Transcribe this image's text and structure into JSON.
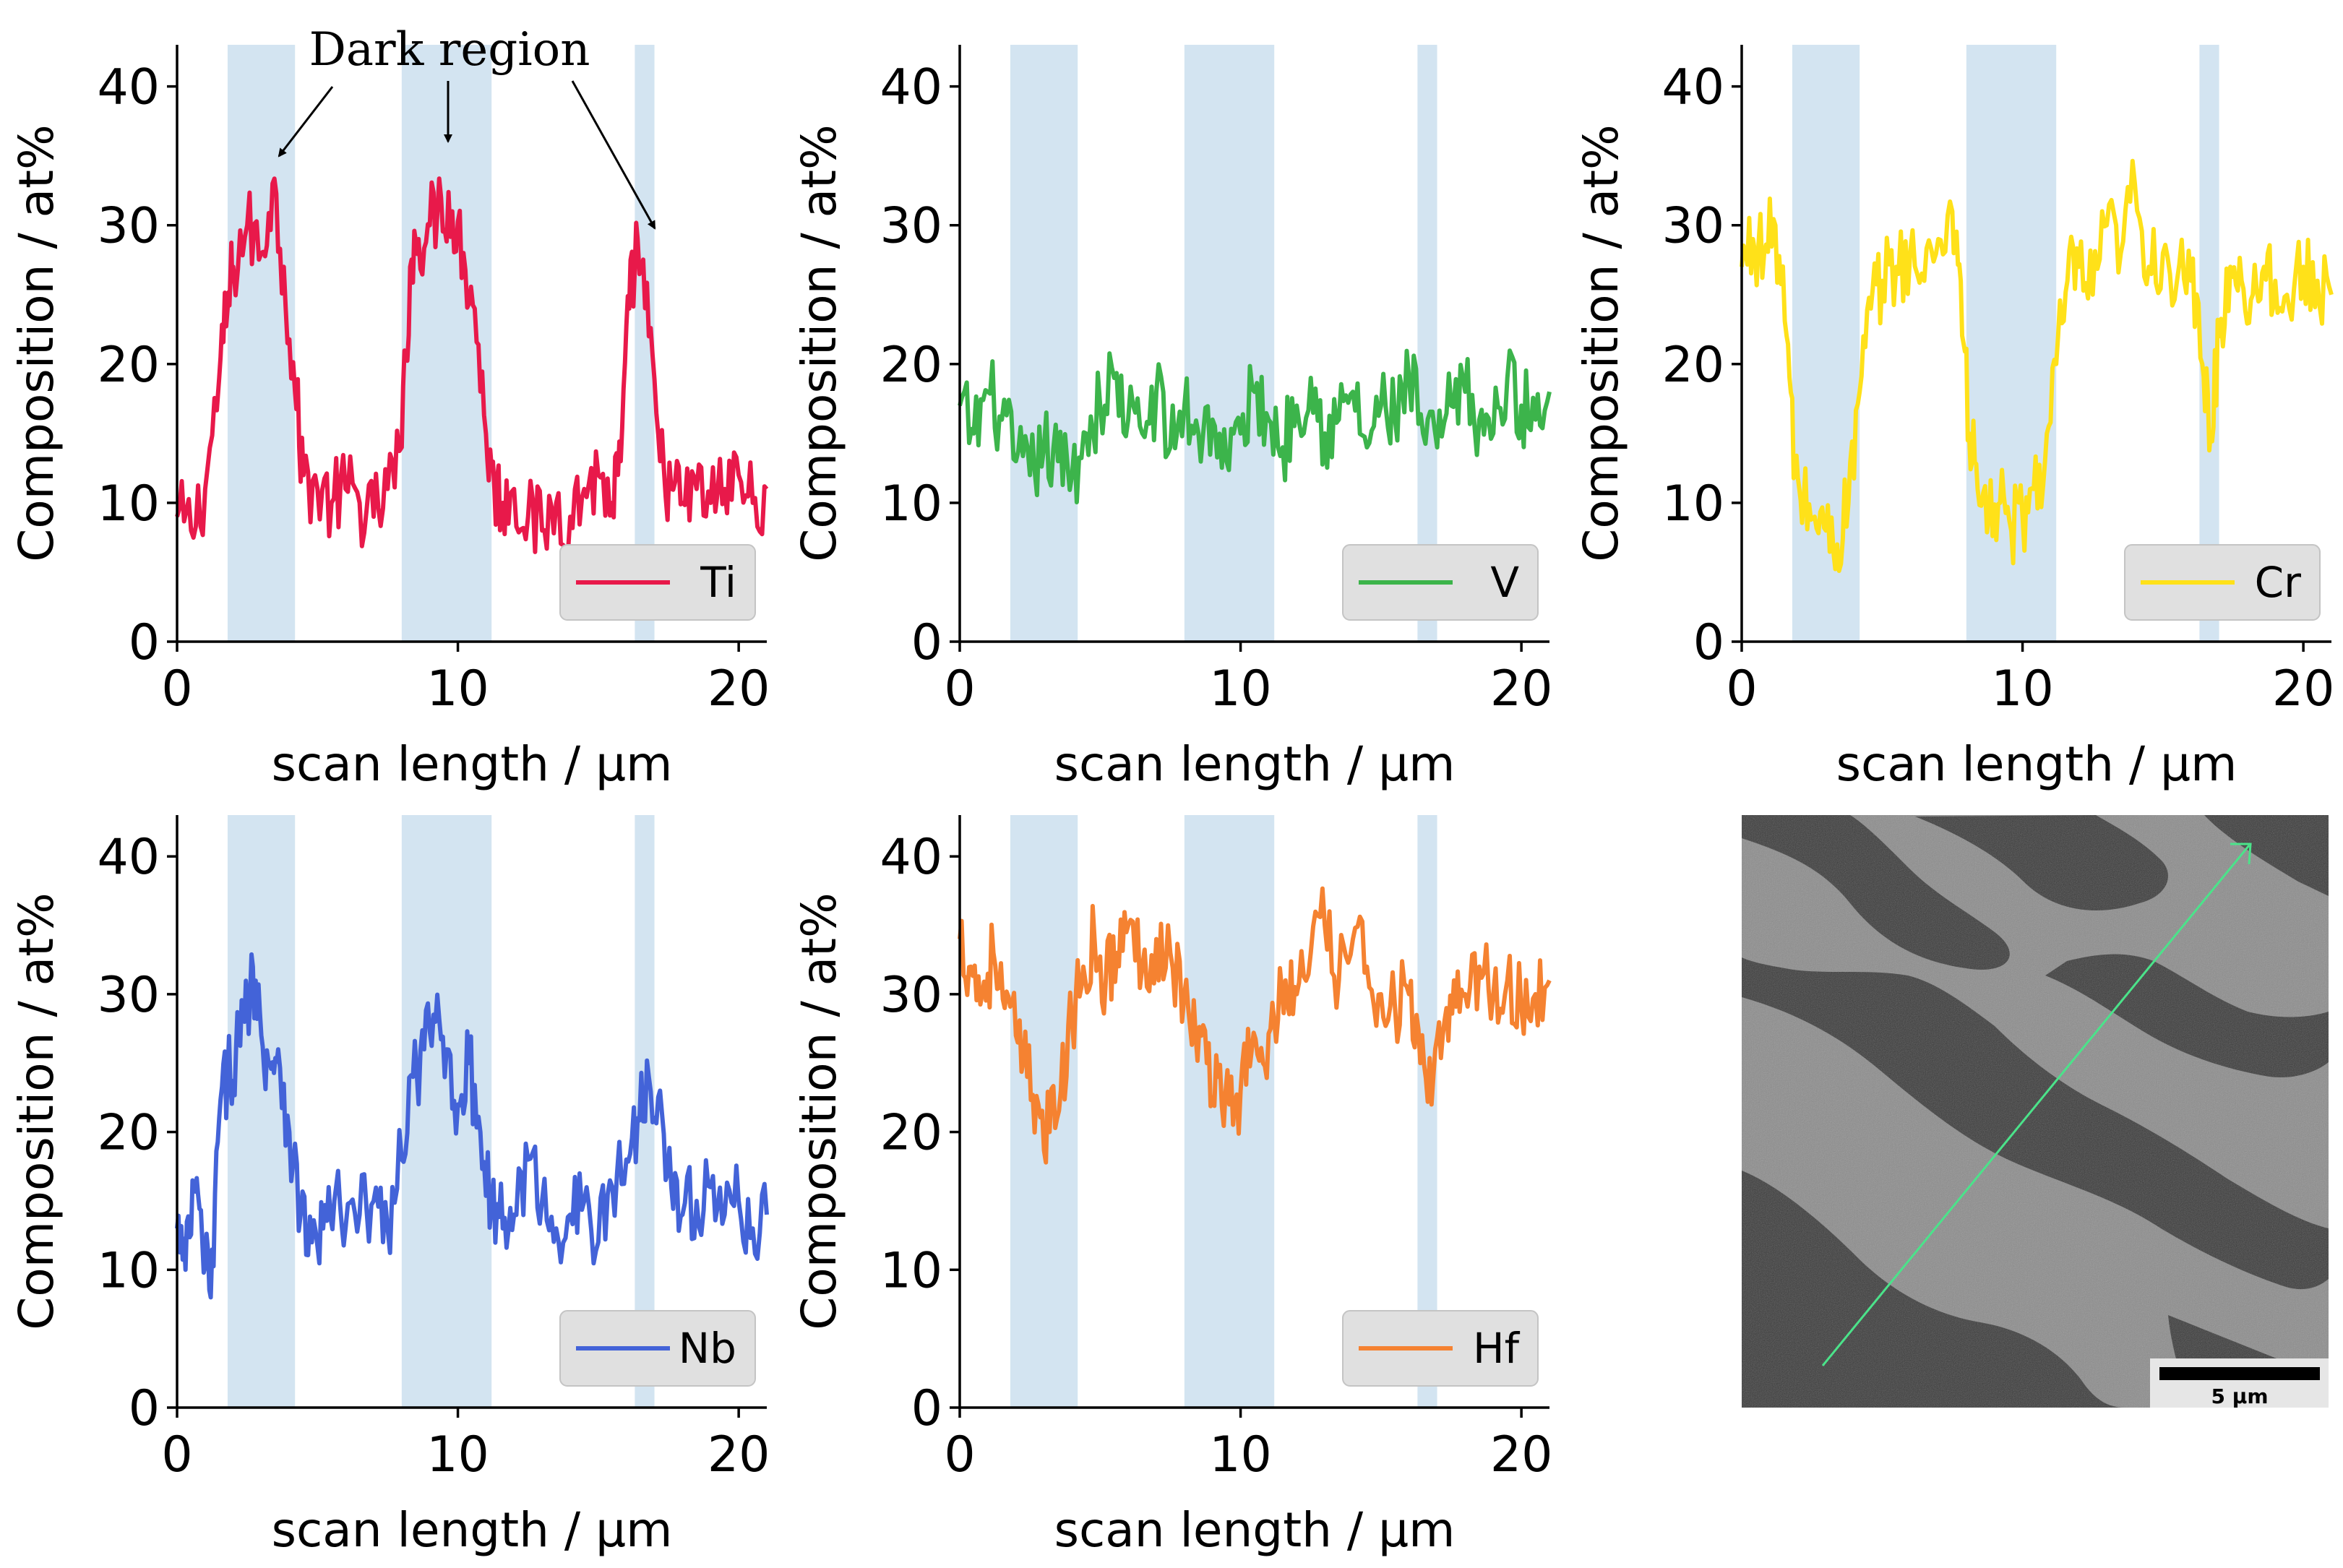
{
  "chart_data": [
    {
      "type": "line",
      "panel": "top-left",
      "series": [
        {
          "name": "Ti",
          "color": "#e8194a",
          "x": [
            0,
            0.5,
            1,
            1.5,
            1.8,
            2,
            2.5,
            3,
            3.4,
            3.8,
            4.2,
            4.5,
            5,
            5.5,
            6,
            6.5,
            7,
            7.5,
            8,
            8.3,
            8.6,
            9,
            9.4,
            9.8,
            10.2,
            10.6,
            11,
            11.3,
            11.6,
            12,
            12.5,
            13,
            13.5,
            14,
            14.5,
            15,
            15.5,
            15.8,
            16.1,
            16.4,
            16.8,
            17.2,
            17.6,
            18,
            18.5,
            19,
            19.5,
            20,
            20.5,
            21
          ],
          "values": [
            9,
            8,
            11,
            19,
            24,
            27,
            30,
            28,
            33,
            27,
            18,
            12,
            11,
            10,
            11,
            10,
            9,
            11,
            14,
            27,
            29,
            30,
            32,
            31,
            28,
            24,
            15,
            11,
            10,
            11,
            9,
            8,
            10,
            9,
            11,
            12,
            10,
            13,
            24,
            29,
            22,
            13,
            11,
            10,
            11,
            10,
            11,
            12,
            10,
            11
          ]
        }
      ],
      "legend": {
        "position": "lower-right",
        "entries": [
          "Ti"
        ]
      },
      "xlabel": "scan length / μm",
      "ylabel": "Composition / at%",
      "xlim": [
        0,
        21
      ],
      "ylim": [
        0,
        43
      ],
      "xticks": [
        "0",
        "10",
        "20"
      ],
      "yticks": [
        "0",
        "10",
        "20",
        "30",
        "40"
      ],
      "shaded_regions": [
        [
          1.8,
          4.2
        ],
        [
          8.0,
          11.2
        ],
        [
          16.3,
          17.0
        ]
      ],
      "annotation": {
        "text": "Dark region"
      }
    },
    {
      "type": "line",
      "panel": "top-middle",
      "series": [
        {
          "name": "V",
          "color": "#3cb44b",
          "x": [
            0,
            0.5,
            1,
            1.5,
            2,
            2.5,
            3,
            3.5,
            4,
            4.5,
            5,
            5.5,
            6,
            6.5,
            7,
            7.5,
            8,
            8.5,
            9,
            9.5,
            10,
            10.5,
            11,
            11.5,
            12,
            12.5,
            13,
            13.5,
            14,
            14.5,
            15,
            15.5,
            16,
            16.5,
            17,
            17.5,
            18,
            18.5,
            19,
            19.5,
            20,
            20.5,
            21
          ],
          "values": [
            17,
            15,
            18,
            16,
            13,
            12,
            14,
            13,
            12,
            15,
            17,
            19,
            16,
            15,
            18,
            14,
            17,
            15,
            16,
            13,
            15,
            18,
            16,
            14,
            17,
            19,
            15,
            16,
            18,
            14,
            17,
            16,
            19,
            15,
            14,
            17,
            18,
            16,
            15,
            19,
            17,
            16,
            18
          ]
        }
      ],
      "legend": {
        "position": "lower-right",
        "entries": [
          "V"
        ]
      },
      "xlabel": "scan length / μm",
      "ylabel": "Composition / at%",
      "xlim": [
        0,
        21
      ],
      "ylim": [
        0,
        43
      ],
      "xticks": [
        "0",
        "10",
        "20"
      ],
      "yticks": [
        "0",
        "10",
        "20",
        "30",
        "40"
      ],
      "shaded_regions": [
        [
          1.8,
          4.2
        ],
        [
          8.0,
          11.2
        ],
        [
          16.3,
          17.0
        ]
      ]
    },
    {
      "type": "line",
      "panel": "top-right",
      "series": [
        {
          "name": "Cr",
          "color": "#ffe119",
          "x": [
            0,
            0.4,
            0.8,
            1.2,
            1.6,
            1.9,
            2.2,
            2.6,
            3,
            3.4,
            3.8,
            4.2,
            4.6,
            5,
            5.5,
            6,
            6.5,
            7,
            7.5,
            7.8,
            8.1,
            8.4,
            8.8,
            9.2,
            9.6,
            10,
            10.4,
            10.8,
            11.2,
            11.6,
            12,
            12.5,
            13,
            13.5,
            14,
            14.5,
            15,
            15.5,
            16,
            16.4,
            16.7,
            17,
            17.4,
            17.8,
            18.2,
            18.6,
            19,
            19.5,
            20,
            20.5,
            21
          ],
          "values": [
            27,
            29,
            28,
            30,
            22,
            12,
            10,
            9,
            8,
            7,
            10,
            18,
            24,
            26,
            27,
            28,
            26,
            29,
            31,
            26,
            15,
            11,
            9,
            10,
            8,
            9,
            11,
            13,
            20,
            26,
            27,
            25,
            30,
            28,
            33,
            27,
            28,
            26,
            26,
            20,
            15,
            22,
            27,
            26,
            25,
            27,
            26,
            24,
            27,
            26,
            25
          ]
        }
      ],
      "legend": {
        "position": "lower-right",
        "entries": [
          "Cr"
        ]
      },
      "xlabel": "scan length / μm",
      "ylabel": "Composition / at%",
      "xlim": [
        0,
        21
      ],
      "ylim": [
        0,
        43
      ],
      "xticks": [
        "0",
        "10",
        "20"
      ],
      "yticks": [
        "0",
        "10",
        "20",
        "30",
        "40"
      ],
      "shaded_regions": [
        [
          1.8,
          4.2
        ],
        [
          8.0,
          11.2
        ],
        [
          16.3,
          17.0
        ]
      ]
    },
    {
      "type": "line",
      "panel": "bottom-left",
      "series": [
        {
          "name": "Nb",
          "color": "#4363d8",
          "x": [
            0,
            0.3,
            0.6,
            0.9,
            1.2,
            1.5,
            1.8,
            2.1,
            2.4,
            2.7,
            3,
            3.3,
            3.6,
            4,
            4.4,
            4.8,
            5.2,
            5.6,
            6,
            6.5,
            7,
            7.5,
            8,
            8.4,
            8.8,
            9.2,
            9.6,
            10,
            10.4,
            10.8,
            11.2,
            11.6,
            12,
            12.5,
            13,
            13.5,
            14,
            14.5,
            15,
            15.5,
            16,
            16.4,
            16.8,
            17.2,
            17.6,
            18,
            18.5,
            19,
            19.5,
            20,
            20.5,
            21
          ],
          "values": [
            13,
            10,
            16,
            12,
            8,
            21,
            24,
            26,
            28,
            32,
            27,
            25,
            26,
            20,
            14,
            12,
            13,
            15,
            13,
            14,
            15,
            13,
            18,
            24,
            26,
            28,
            26,
            22,
            25,
            20,
            15,
            13,
            14,
            18,
            15,
            13,
            14,
            15,
            12,
            16,
            18,
            21,
            24,
            23,
            16,
            14,
            15,
            16,
            14,
            15,
            13,
            14
          ]
        }
      ],
      "legend": {
        "position": "lower-right",
        "entries": [
          "Nb"
        ]
      },
      "xlabel": "scan length / μm",
      "ylabel": "Composition / at%",
      "xlim": [
        0,
        21
      ],
      "ylim": [
        0,
        43
      ],
      "xticks": [
        "0",
        "10",
        "20"
      ],
      "yticks": [
        "0",
        "10",
        "20",
        "30",
        "40"
      ],
      "shaded_regions": [
        [
          1.8,
          4.2
        ],
        [
          8.0,
          11.2
        ],
        [
          16.3,
          17.0
        ]
      ]
    },
    {
      "type": "line",
      "panel": "bottom-middle",
      "series": [
        {
          "name": "Hf",
          "color": "#f58231",
          "x": [
            0,
            0.4,
            0.8,
            1.2,
            1.6,
            2,
            2.4,
            2.8,
            3.2,
            3.6,
            4,
            4.4,
            4.8,
            5.2,
            5.6,
            6,
            6.5,
            7,
            7.5,
            8,
            8.4,
            8.8,
            9.2,
            9.6,
            10,
            10.4,
            10.8,
            11.2,
            11.6,
            12,
            12.5,
            13,
            13.5,
            14,
            14.5,
            15,
            15.5,
            16,
            16.4,
            16.8,
            17.2,
            17.6,
            18,
            18.5,
            19,
            19.5,
            20,
            20.5,
            21
          ],
          "values": [
            34,
            32,
            30,
            33,
            29,
            27,
            24,
            22,
            20,
            23,
            28,
            32,
            34,
            31,
            33,
            35,
            32,
            34,
            33,
            30,
            27,
            25,
            24,
            22,
            23,
            26,
            25,
            28,
            31,
            30,
            33,
            35,
            31,
            34,
            32,
            30,
            29,
            30,
            25,
            22,
            27,
            31,
            30,
            32,
            30,
            31,
            29,
            30,
            31
          ]
        }
      ],
      "legend": {
        "position": "lower-right",
        "entries": [
          "Hf"
        ]
      },
      "xlabel": "scan length / μm",
      "ylabel": "Composition / at%",
      "xlim": [
        0,
        21
      ],
      "ylim": [
        0,
        43
      ],
      "xticks": [
        "0",
        "10",
        "20"
      ],
      "yticks": [
        "0",
        "10",
        "20",
        "30",
        "40"
      ],
      "shaded_regions": [
        [
          1.8,
          4.2
        ],
        [
          8.0,
          11.2
        ],
        [
          16.3,
          17.0
        ]
      ]
    }
  ],
  "micrograph": {
    "scale_bar_label": "5 μm",
    "scan_line_color": "#4be38a"
  },
  "colors": {
    "shade": "#d3e4f1",
    "legend_bg": "#e0e0e0",
    "legend_border": "#c4c4c4"
  }
}
